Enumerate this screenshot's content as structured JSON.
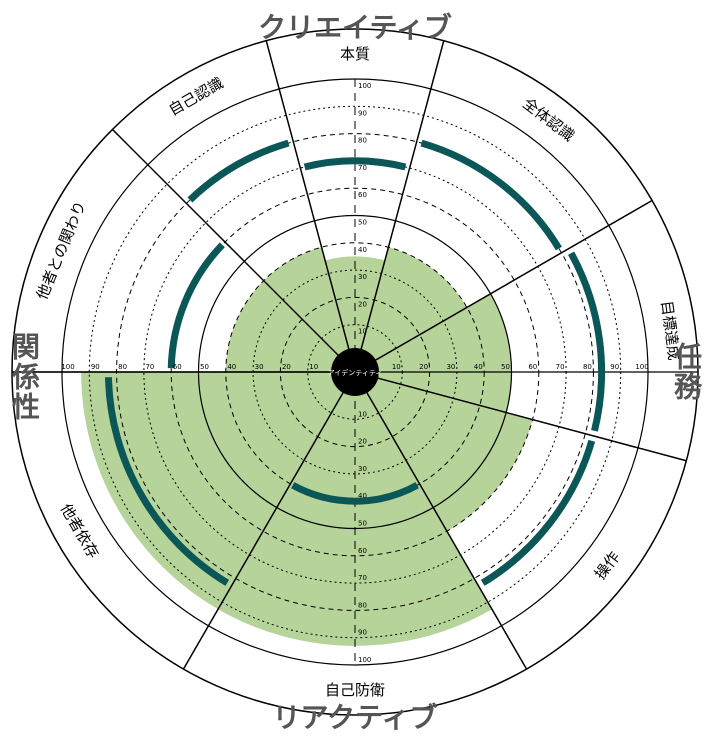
{
  "poles": {
    "top": "クリエイティブ",
    "bottom": "リアクティブ",
    "left": "関係性",
    "right": "任務"
  },
  "chart_data": {
    "type": "radar",
    "center_label": "アイデンティティ",
    "rlim": [
      0,
      100
    ],
    "ticks": [
      10,
      20,
      30,
      40,
      50,
      60,
      70,
      80,
      90,
      100
    ],
    "sectors": [
      {
        "label": "本質",
        "green": 35,
        "line": 70
      },
      {
        "label": "全体認識",
        "green": 40,
        "line": 80
      },
      {
        "label": "目標達成",
        "green": 50,
        "line": 83
      },
      {
        "label": "操作",
        "green": 60,
        "line": 83
      },
      {
        "label": "自己防衛",
        "green": 93,
        "line": 40
      },
      {
        "label": "他者依存",
        "green": 93,
        "line": 83
      },
      {
        "label": "他者との関わり",
        "green": 40,
        "line": 60
      },
      {
        "label": "自己認識",
        "green": 40,
        "line": 80
      }
    ],
    "colors": {
      "fill": "#b6d39a",
      "line": "#0b5757"
    }
  }
}
